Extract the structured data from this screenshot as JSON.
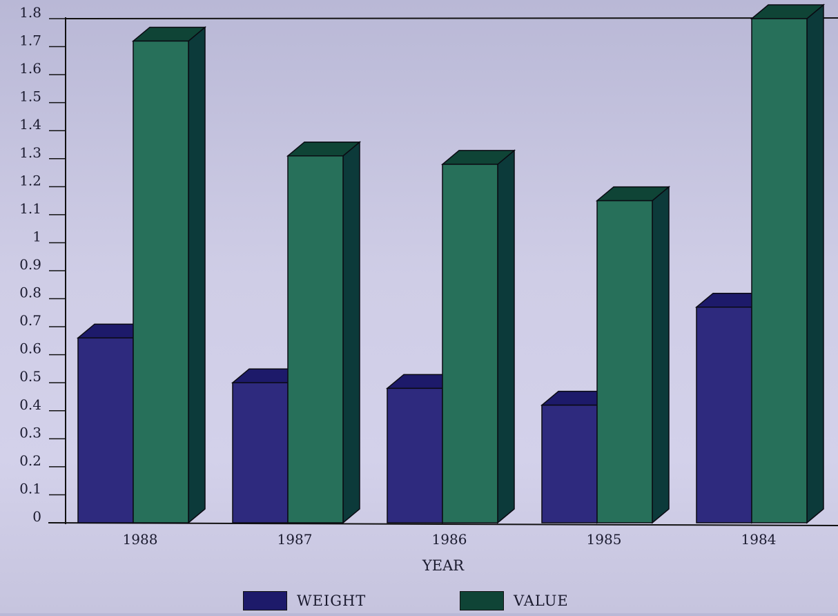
{
  "chart_data": {
    "type": "bar",
    "categories": [
      "1988",
      "1987",
      "1986",
      "1985",
      "1984"
    ],
    "series": [
      {
        "name": "WEIGHT",
        "values": [
          0.66,
          0.5,
          0.48,
          0.42,
          0.77
        ]
      },
      {
        "name": "VALUE",
        "values": [
          1.72,
          1.31,
          1.28,
          1.15,
          1.8
        ]
      }
    ],
    "title": "",
    "xlabel": "YEAR",
    "ylabel": "",
    "ylim": [
      0,
      1.8
    ],
    "yticks": [
      "0",
      "0.1",
      "0.2",
      "0.3",
      "0.4",
      "0.5",
      "0.6",
      "0.7",
      "0.8",
      "0.9",
      "1",
      "1.1",
      "1.2",
      "1.3",
      "1.4",
      "1.5",
      "1.6",
      "1.7",
      "1.8"
    ],
    "style": "3d-bar",
    "grid": false,
    "legend_position": "bottom"
  },
  "colors": {
    "weight_front": "#2e2a7e",
    "weight_top": "#1d1a6a",
    "weight_side": "#16134f",
    "value_front": "#27705a",
    "value_top": "#0f4436",
    "value_side": "#0c3a3a"
  },
  "legend": {
    "weight_label": "WEIGHT",
    "value_label": "VALUE"
  }
}
